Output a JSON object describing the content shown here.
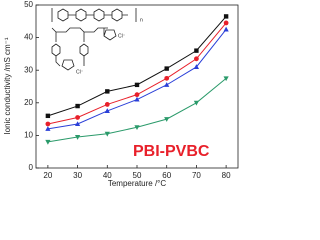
{
  "chart_data": {
    "type": "line",
    "x_label": "Temperature /°C",
    "y_label": "Ionic conductivity /mS cm⁻¹",
    "annotation": "PBI-PVBC",
    "structure_labels": [
      "n",
      "Cl⁻",
      "Cl⁻"
    ],
    "x": [
      20,
      30,
      40,
      50,
      60,
      70,
      80
    ],
    "xlim": [
      16,
      84
    ],
    "xticks": [
      20,
      30,
      40,
      50,
      60,
      70,
      80
    ],
    "ylim": [
      0,
      50
    ],
    "yticks": [
      0,
      10,
      20,
      30,
      40,
      50
    ],
    "series": [
      {
        "color": "#111111",
        "marker": "square",
        "values": [
          16,
          19,
          23.5,
          25.5,
          30.5,
          36,
          46.5
        ]
      },
      {
        "color": "#e8202a",
        "marker": "circle",
        "values": [
          13.5,
          15.5,
          19.5,
          22.5,
          27.5,
          33.5,
          44.5
        ]
      },
      {
        "color": "#2a3fd8",
        "marker": "triangle",
        "values": [
          12,
          13.5,
          17.5,
          21,
          25.5,
          31,
          42.5
        ]
      },
      {
        "color": "#2a9a6a",
        "marker": "triangle-down",
        "values": [
          8,
          9.5,
          10.5,
          12.5,
          15,
          20,
          27.5
        ]
      }
    ]
  }
}
